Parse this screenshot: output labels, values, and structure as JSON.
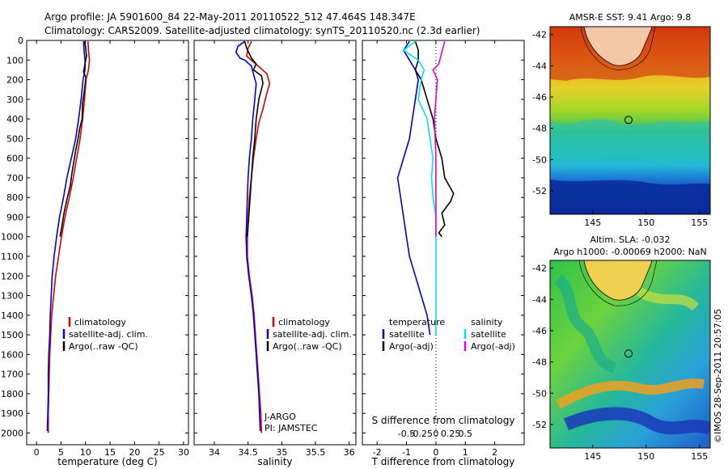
{
  "header": {
    "line1": "Argo profile: JA 5901600_84 22-May-2011 20110522_512 47.464S 148.347E",
    "line2": "Climatology: CARS2009. Satellite-adjusted climatology: synTS_20110520.nc (2.3d earlier)"
  },
  "side_text": "©IMOS 28-Sep-2011 20:57:05",
  "colors": {
    "red": "#dd0000",
    "blue": "#0000dd",
    "black": "#000000",
    "cyan": "#00e5e5",
    "magenta": "#e000e0"
  },
  "chart_data": [
    {
      "type": "line",
      "name": "temperature",
      "xlabel": "temperature (deg C)",
      "ylabel": "",
      "xlim": [
        -2,
        31
      ],
      "ylim": [
        0,
        2060
      ],
      "y_inverted": true,
      "xticks": [
        0,
        5,
        10,
        15,
        20,
        25,
        30
      ],
      "yticks": [
        0,
        100,
        200,
        300,
        400,
        500,
        600,
        700,
        800,
        900,
        1000,
        1100,
        1200,
        1300,
        1400,
        1500,
        1600,
        1700,
        1800,
        1900,
        2000
      ],
      "legend": {
        "placement": "lower-center",
        "entries": [
          {
            "label": "climatology",
            "color": "#dd0000"
          },
          {
            "label": "satellite-adj. clim.",
            "color": "#0000dd"
          },
          {
            "label": "Argo(..raw -QC)",
            "color": "#000000"
          }
        ]
      },
      "series": [
        {
          "name": "climatology",
          "color": "#dd0000",
          "points": [
            [
              10.5,
              5
            ],
            [
              10.6,
              50
            ],
            [
              10.8,
              100
            ],
            [
              10.6,
              150
            ],
            [
              10.1,
              200
            ],
            [
              9.8,
              300
            ],
            [
              9.4,
              400
            ],
            [
              8.9,
              500
            ],
            [
              8.2,
              600
            ],
            [
              7.5,
              700
            ],
            [
              6.7,
              800
            ],
            [
              5.8,
              900
            ],
            [
              5.1,
              1000
            ],
            [
              4.5,
              1100
            ],
            [
              3.9,
              1200
            ],
            [
              3.5,
              1300
            ],
            [
              3.1,
              1400
            ],
            [
              2.9,
              1500
            ],
            [
              2.7,
              1600
            ],
            [
              2.6,
              1700
            ],
            [
              2.5,
              1800
            ],
            [
              2.4,
              1900
            ],
            [
              2.4,
              2000
            ]
          ]
        },
        {
          "name": "satellite",
          "color": "#0000dd",
          "points": [
            [
              9.6,
              5
            ],
            [
              9.7,
              50
            ],
            [
              9.9,
              100
            ],
            [
              9.9,
              150
            ],
            [
              9.5,
              200
            ],
            [
              9.1,
              300
            ],
            [
              8.6,
              400
            ],
            [
              8.0,
              500
            ],
            [
              7.1,
              600
            ],
            [
              6.2,
              700
            ],
            [
              5.5,
              800
            ],
            [
              4.7,
              900
            ],
            [
              4.1,
              1000
            ],
            [
              3.6,
              1100
            ],
            [
              3.2,
              1200
            ],
            [
              3.0,
              1300
            ],
            [
              2.8,
              1400
            ],
            [
              2.7,
              1500
            ],
            [
              2.5,
              1600
            ],
            [
              2.4,
              1700
            ],
            [
              2.4,
              1800
            ],
            [
              2.3,
              1900
            ],
            [
              2.2,
              1990
            ]
          ]
        },
        {
          "name": "argo",
          "color": "#000000",
          "points": [
            [
              9.8,
              5
            ],
            [
              10.0,
              30
            ],
            [
              10.2,
              80
            ],
            [
              9.9,
              120
            ],
            [
              9.6,
              160
            ],
            [
              10.1,
              190
            ],
            [
              9.8,
              250
            ],
            [
              9.4,
              320
            ],
            [
              9.3,
              400
            ],
            [
              8.8,
              450
            ],
            [
              8.5,
              500
            ],
            [
              8.0,
              560
            ],
            [
              7.6,
              620
            ],
            [
              7.2,
              680
            ],
            [
              6.9,
              740
            ],
            [
              6.3,
              800
            ],
            [
              5.6,
              880
            ],
            [
              5.1,
              960
            ],
            [
              4.8,
              1000
            ]
          ]
        }
      ]
    },
    {
      "type": "line",
      "name": "salinity",
      "xlabel": "salinity",
      "ylabel": "",
      "xlim": [
        33.7,
        36.1
      ],
      "ylim": [
        0,
        2060
      ],
      "y_inverted": true,
      "xticks": [
        34,
        34.5,
        35,
        35.5,
        36
      ],
      "legend": {
        "placement": "lower-center",
        "entries": [
          {
            "label": "climatology",
            "color": "#dd0000"
          },
          {
            "label": "satellite-adj. clim.",
            "color": "#0000dd"
          },
          {
            "label": "Argo(..raw -QC)",
            "color": "#000000"
          }
        ]
      },
      "annotations": [
        "J-ARGO",
        "PI: JAMSTEC"
      ],
      "series": [
        {
          "name": "climatology",
          "color": "#dd0000",
          "points": [
            [
              34.55,
              5
            ],
            [
              34.5,
              40
            ],
            [
              34.48,
              80
            ],
            [
              34.58,
              110
            ],
            [
              34.65,
              130
            ],
            [
              34.78,
              170
            ],
            [
              34.82,
              220
            ],
            [
              34.77,
              280
            ],
            [
              34.72,
              350
            ],
            [
              34.66,
              420
            ],
            [
              34.62,
              500
            ],
            [
              34.58,
              600
            ],
            [
              34.55,
              700
            ],
            [
              34.52,
              800
            ],
            [
              34.5,
              900
            ],
            [
              34.49,
              1000
            ],
            [
              34.49,
              1100
            ],
            [
              34.52,
              1200
            ],
            [
              34.56,
              1300
            ],
            [
              34.59,
              1400
            ],
            [
              34.61,
              1500
            ],
            [
              34.63,
              1600
            ],
            [
              34.65,
              1700
            ],
            [
              34.67,
              1800
            ],
            [
              34.69,
              1900
            ],
            [
              34.7,
              2000
            ]
          ]
        },
        {
          "name": "satellite",
          "color": "#0000dd",
          "points": [
            [
              34.45,
              5
            ],
            [
              34.35,
              30
            ],
            [
              34.32,
              60
            ],
            [
              34.38,
              90
            ],
            [
              34.45,
              100
            ],
            [
              34.55,
              130
            ],
            [
              34.58,
              170
            ],
            [
              34.62,
              220
            ],
            [
              34.6,
              300
            ],
            [
              34.57,
              400
            ],
            [
              34.55,
              500
            ],
            [
              34.52,
              600
            ],
            [
              34.5,
              700
            ],
            [
              34.49,
              800
            ],
            [
              34.48,
              900
            ],
            [
              34.47,
              1000
            ],
            [
              34.48,
              1100
            ],
            [
              34.51,
              1200
            ],
            [
              34.55,
              1300
            ],
            [
              34.58,
              1400
            ],
            [
              34.6,
              1500
            ],
            [
              34.62,
              1600
            ],
            [
              34.64,
              1700
            ],
            [
              34.66,
              1800
            ],
            [
              34.67,
              1900
            ],
            [
              34.68,
              1990
            ]
          ]
        },
        {
          "name": "argo",
          "color": "#000000",
          "points": [
            [
              34.45,
              5
            ],
            [
              34.48,
              40
            ],
            [
              34.55,
              90
            ],
            [
              34.62,
              120
            ],
            [
              34.58,
              150
            ],
            [
              34.7,
              180
            ],
            [
              34.72,
              220
            ],
            [
              34.66,
              300
            ],
            [
              34.62,
              400
            ],
            [
              34.6,
              500
            ],
            [
              34.57,
              600
            ],
            [
              34.55,
              700
            ],
            [
              34.53,
              800
            ],
            [
              34.51,
              900
            ],
            [
              34.49,
              1000
            ]
          ]
        }
      ]
    },
    {
      "type": "line",
      "name": "differences",
      "xlabel": "T difference from climatology",
      "xlabel_top": "S difference from climatology",
      "xlim": [
        -2.5,
        3
      ],
      "ylim": [
        0,
        2060
      ],
      "y_inverted": true,
      "xticks_T": [
        -2,
        -1,
        0,
        1,
        2
      ],
      "xticks_S": [
        "-0.5",
        "-0.25",
        "0",
        "0.25",
        "0.5"
      ],
      "legend": {
        "placement": "lower-center",
        "group_titles": [
          "temperature",
          "salinity"
        ],
        "entries": [
          {
            "label": "satellite",
            "color": "#0000dd"
          },
          {
            "label": "Argo(-adj)",
            "color": "#000000"
          },
          {
            "label": "satellite",
            "color": "#00e5e5"
          },
          {
            "label": "Argo(-adj)",
            "color": "#e000e0"
          }
        ]
      },
      "series": [
        {
          "name": "T satellite",
          "color": "#0000dd",
          "points": [
            [
              -0.9,
              5
            ],
            [
              -1.1,
              50
            ],
            [
              -0.9,
              100
            ],
            [
              -0.7,
              150
            ],
            [
              -0.6,
              200
            ],
            [
              -0.7,
              300
            ],
            [
              -0.8,
              400
            ],
            [
              -0.9,
              500
            ],
            [
              -1.1,
              600
            ],
            [
              -1.3,
              700
            ],
            [
              -1.2,
              800
            ],
            [
              -1.1,
              900
            ],
            [
              -1.0,
              1000
            ],
            [
              -0.9,
              1100
            ],
            [
              -0.7,
              1200
            ],
            [
              -0.5,
              1300
            ],
            [
              -0.3,
              1400
            ],
            [
              -0.2,
              1500
            ]
          ]
        },
        {
          "name": "T argo",
          "color": "#000000",
          "points": [
            [
              -0.7,
              5
            ],
            [
              -0.6,
              50
            ],
            [
              -0.6,
              100
            ],
            [
              -0.7,
              150
            ],
            [
              -0.5,
              200
            ],
            [
              -0.3,
              300
            ],
            [
              -0.1,
              400
            ],
            [
              0,
              500
            ],
            [
              0.2,
              600
            ],
            [
              0.3,
              700
            ],
            [
              0.6,
              780
            ],
            [
              0.5,
              820
            ],
            [
              0.2,
              880
            ],
            [
              0.3,
              940
            ],
            [
              0.1,
              980
            ],
            [
              0.2,
              1000
            ]
          ]
        },
        {
          "name": "S satellite",
          "color": "#00e5e5",
          "points": [
            [
              -0.7,
              5
            ],
            [
              -1.1,
              50
            ],
            [
              -0.6,
              100
            ],
            [
              -0.4,
              150
            ],
            [
              -0.5,
              200
            ],
            [
              -0.6,
              300
            ],
            [
              -0.3,
              400
            ],
            [
              -0.2,
              500
            ],
            [
              -0.1,
              600
            ],
            [
              -0.15,
              700
            ],
            [
              -0.1,
              800
            ],
            [
              0,
              900
            ],
            [
              0,
              1000
            ],
            [
              0,
              1100
            ],
            [
              0,
              1200
            ],
            [
              0,
              1300
            ],
            [
              0,
              1400
            ],
            [
              0,
              1500
            ]
          ]
        },
        {
          "name": "S argo",
          "color": "#e000e0",
          "points": [
            [
              0.3,
              5
            ],
            [
              0.2,
              60
            ],
            [
              0.1,
              120
            ],
            [
              -0.1,
              150
            ],
            [
              0.05,
              200
            ],
            [
              0,
              300
            ],
            [
              -0.05,
              400
            ],
            [
              0,
              600
            ],
            [
              0,
              800
            ],
            [
              0,
              1000
            ]
          ]
        }
      ]
    },
    {
      "type": "heatmap",
      "name": "sst-map",
      "title": "AMSR-E SST: 9.41  Argo: 9.8",
      "xticks": [
        145,
        150,
        155
      ],
      "yticks": [
        -42,
        -44,
        -46,
        -48,
        -50,
        -52
      ],
      "xlim": [
        141,
        156
      ],
      "ylim": [
        -53.5,
        -41.5
      ],
      "marker": {
        "lon": 148.347,
        "lat": -47.464
      }
    },
    {
      "type": "heatmap",
      "name": "sla-map",
      "title": "Altim. SLA: -0.032",
      "subtitle": "Argo h1000: -0.00069  h2000: NaN",
      "xticks": [
        145,
        150,
        155
      ],
      "yticks": [
        -42,
        -44,
        -46,
        -48,
        -50,
        -52
      ],
      "xlim": [
        141,
        156
      ],
      "ylim": [
        -53.5,
        -41.5
      ],
      "marker": {
        "lon": 148.347,
        "lat": -47.464
      }
    }
  ]
}
